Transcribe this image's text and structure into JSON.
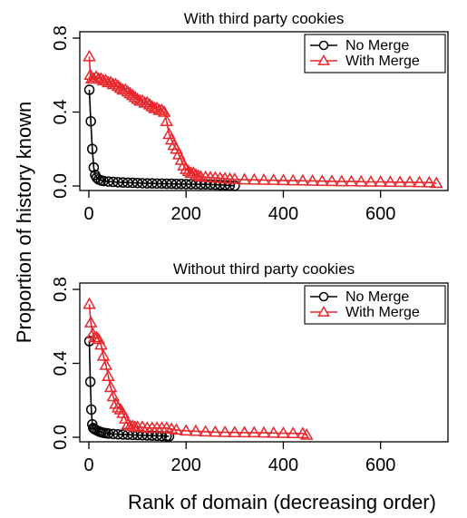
{
  "ylabel": "Proportion of history known",
  "xlabel": "Rank of domain (decreasing order)",
  "colors": {
    "no_merge": "#000000",
    "with_merge": "#e8262b"
  },
  "chart_data": [
    {
      "type": "line",
      "title": "With third party cookies",
      "xlim": [
        0,
        720
      ],
      "ylim": [
        0,
        0.8
      ],
      "x_ticks": [
        "0",
        "200",
        "400",
        "600"
      ],
      "y_ticks": [
        "0.0",
        "0.4",
        "0.8"
      ],
      "legend": [
        "No Merge",
        "With Merge"
      ],
      "legend_position": "top-right",
      "series": [
        {
          "name": "No Merge",
          "x": [
            1,
            4,
            7,
            10,
            13,
            16,
            20,
            25,
            30,
            40,
            50,
            60,
            70,
            80,
            90,
            100,
            110,
            120,
            130,
            140,
            150,
            160,
            170,
            180,
            190,
            200,
            210,
            220,
            230,
            240,
            250,
            260,
            270,
            280,
            290,
            300
          ],
          "y": [
            0.52,
            0.35,
            0.2,
            0.1,
            0.06,
            0.045,
            0.035,
            0.03,
            0.027,
            0.024,
            0.022,
            0.02,
            0.019,
            0.018,
            0.017,
            0.016,
            0.015,
            0.014,
            0.014,
            0.013,
            0.013,
            0.012,
            0.012,
            0.011,
            0.011,
            0.01,
            0.01,
            0.01,
            0.009,
            0.009,
            0.008,
            0.007,
            0.006,
            0.005,
            0.003,
            0.001
          ]
        },
        {
          "name": "With Merge",
          "x": [
            1,
            3,
            6,
            10,
            15,
            20,
            25,
            30,
            35,
            40,
            45,
            50,
            55,
            60,
            65,
            70,
            75,
            80,
            85,
            90,
            95,
            100,
            105,
            110,
            115,
            120,
            125,
            130,
            135,
            140,
            145,
            150,
            155,
            160,
            165,
            170,
            175,
            180,
            185,
            190,
            195,
            200,
            205,
            210,
            215,
            220,
            225,
            230,
            240,
            250,
            260,
            270,
            280,
            290,
            300,
            320,
            340,
            360,
            380,
            400,
            420,
            440,
            460,
            480,
            500,
            520,
            540,
            560,
            580,
            600,
            620,
            640,
            660,
            680,
            700,
            715
          ],
          "y": [
            0.7,
            0.6,
            0.58,
            0.58,
            0.59,
            0.58,
            0.58,
            0.57,
            0.57,
            0.56,
            0.56,
            0.55,
            0.55,
            0.54,
            0.53,
            0.52,
            0.52,
            0.51,
            0.5,
            0.49,
            0.48,
            0.47,
            0.46,
            0.46,
            0.45,
            0.45,
            0.44,
            0.43,
            0.42,
            0.42,
            0.41,
            0.41,
            0.4,
            0.35,
            0.28,
            0.25,
            0.22,
            0.2,
            0.17,
            0.14,
            0.11,
            0.09,
            0.08,
            0.07,
            0.07,
            0.06,
            0.055,
            0.05,
            0.048,
            0.046,
            0.044,
            0.042,
            0.04,
            0.038,
            0.036,
            0.034,
            0.033,
            0.032,
            0.031,
            0.03,
            0.029,
            0.028,
            0.027,
            0.026,
            0.025,
            0.024,
            0.024,
            0.023,
            0.022,
            0.022,
            0.021,
            0.02,
            0.02,
            0.019,
            0.018,
            0.015
          ]
        }
      ]
    },
    {
      "type": "line",
      "title": "Without third party cookies",
      "xlim": [
        0,
        720
      ],
      "ylim": [
        0,
        0.8
      ],
      "x_ticks": [
        "0",
        "200",
        "400",
        "600"
      ],
      "y_ticks": [
        "0.0",
        "0.4",
        "0.8"
      ],
      "legend": [
        "No Merge",
        "With Merge"
      ],
      "legend_position": "top-right",
      "series": [
        {
          "name": "No Merge",
          "x": [
            1,
            3,
            5,
            7,
            9,
            11,
            14,
            18,
            22,
            26,
            30,
            35,
            40,
            50,
            60,
            70,
            80,
            90,
            100,
            110,
            120,
            130,
            140,
            150,
            160,
            165
          ],
          "y": [
            0.52,
            0.3,
            0.15,
            0.07,
            0.05,
            0.045,
            0.04,
            0.035,
            0.03,
            0.027,
            0.024,
            0.022,
            0.02,
            0.018,
            0.016,
            0.015,
            0.014,
            0.013,
            0.012,
            0.011,
            0.01,
            0.009,
            0.008,
            0.007,
            0.006,
            0.005
          ]
        },
        {
          "name": "With Merge",
          "x": [
            1,
            4,
            8,
            12,
            16,
            20,
            25,
            30,
            35,
            40,
            45,
            50,
            55,
            60,
            65,
            70,
            75,
            80,
            85,
            90,
            95,
            100,
            110,
            120,
            130,
            140,
            150,
            160,
            170,
            180,
            200,
            220,
            240,
            260,
            280,
            300,
            320,
            340,
            360,
            380,
            400,
            420,
            440,
            448
          ],
          "y": [
            0.72,
            0.62,
            0.56,
            0.54,
            0.54,
            0.53,
            0.5,
            0.44,
            0.39,
            0.33,
            0.27,
            0.22,
            0.18,
            0.16,
            0.15,
            0.13,
            0.1,
            0.07,
            0.06,
            0.06,
            0.055,
            0.055,
            0.055,
            0.05,
            0.05,
            0.05,
            0.05,
            0.05,
            0.045,
            0.04,
            0.035,
            0.033,
            0.03,
            0.028,
            0.027,
            0.026,
            0.025,
            0.025,
            0.024,
            0.023,
            0.022,
            0.021,
            0.02,
            0.012
          ]
        }
      ]
    }
  ]
}
